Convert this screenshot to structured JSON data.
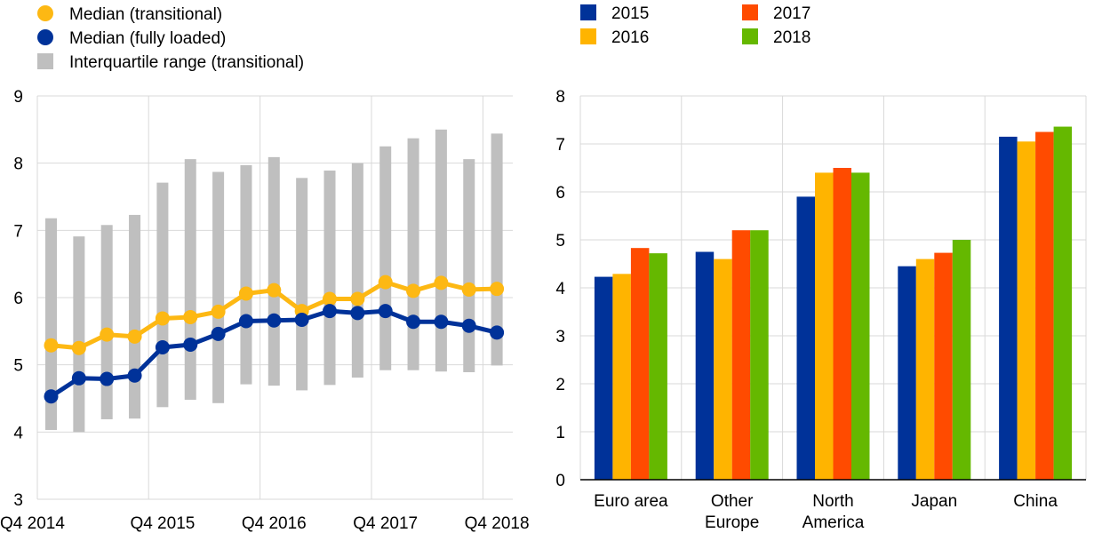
{
  "chart_data": [
    {
      "type": "line",
      "title": "",
      "xlabel": "",
      "ylabel": "",
      "ylim": [
        3,
        9
      ],
      "yticks": [
        "3",
        "4",
        "5",
        "6",
        "7",
        "8",
        "9"
      ],
      "x_tick_labels": [
        "Q4 2014",
        "Q4 2015",
        "Q4 2016",
        "Q4 2017",
        "Q4 2018"
      ],
      "grid": true,
      "legend_position": "top-left",
      "legend": [
        {
          "label": "Median (transitional)",
          "color": "#FDB813",
          "marker": "circle"
        },
        {
          "label": "Median (fully loaded)",
          "color": "#003299",
          "marker": "circle"
        },
        {
          "label": "Interquartile range (transitional)",
          "color": "#BFBFBF",
          "marker": "square"
        }
      ],
      "x": [
        "Q4 2014",
        "Q1 2015",
        "Q2 2015",
        "Q3 2015",
        "Q4 2015",
        "Q1 2016",
        "Q2 2016",
        "Q3 2016",
        "Q4 2016",
        "Q1 2017",
        "Q2 2017",
        "Q3 2017",
        "Q4 2017",
        "Q1 2018",
        "Q2 2018",
        "Q3 2018",
        "Q4 2018"
      ],
      "range": {
        "name": "Interquartile range (transitional)",
        "color": "#BFBFBF",
        "low": [
          4.03,
          4.0,
          4.19,
          4.2,
          4.37,
          4.48,
          4.43,
          4.71,
          4.69,
          4.62,
          4.7,
          4.81,
          4.92,
          4.92,
          4.9,
          4.89,
          4.99
        ],
        "high": [
          7.18,
          6.91,
          7.08,
          7.23,
          7.71,
          8.06,
          7.87,
          7.97,
          8.09,
          7.78,
          7.89,
          8.0,
          8.25,
          8.37,
          8.5,
          8.06,
          8.44
        ]
      },
      "series": [
        {
          "name": "Median (transitional)",
          "color": "#FDB813",
          "values": [
            5.29,
            5.25,
            5.45,
            5.42,
            5.69,
            5.71,
            5.79,
            6.06,
            6.11,
            5.8,
            5.98,
            5.98,
            6.23,
            6.1,
            6.22,
            6.12,
            6.13
          ]
        },
        {
          "name": "Median (fully loaded)",
          "color": "#003299",
          "values": [
            4.53,
            4.8,
            4.79,
            4.84,
            5.26,
            5.3,
            5.46,
            5.65,
            5.66,
            5.67,
            5.8,
            5.77,
            5.8,
            5.64,
            5.64,
            5.58,
            5.48
          ]
        }
      ]
    },
    {
      "type": "bar",
      "title": "",
      "xlabel": "",
      "ylabel": "",
      "ylim": [
        0,
        8
      ],
      "yticks": [
        "0",
        "1",
        "2",
        "3",
        "4",
        "5",
        "6",
        "7",
        "8"
      ],
      "grid": true,
      "legend_position": "top",
      "categories": [
        [
          "Euro area"
        ],
        [
          "Other",
          "Europe"
        ],
        [
          "North",
          "America"
        ],
        [
          "Japan"
        ],
        [
          "China"
        ]
      ],
      "series": [
        {
          "name": "2015",
          "color": "#003299",
          "values": [
            4.23,
            4.75,
            5.9,
            4.45,
            7.15
          ]
        },
        {
          "name": "2016",
          "color": "#FFB400",
          "values": [
            4.29,
            4.6,
            6.4,
            4.6,
            7.05
          ]
        },
        {
          "name": "2017",
          "color": "#FF4B00",
          "values": [
            4.83,
            5.2,
            6.5,
            4.73,
            7.25
          ]
        },
        {
          "name": "2018",
          "color": "#65B800",
          "values": [
            4.72,
            5.2,
            6.4,
            5.0,
            7.36
          ]
        }
      ]
    }
  ]
}
